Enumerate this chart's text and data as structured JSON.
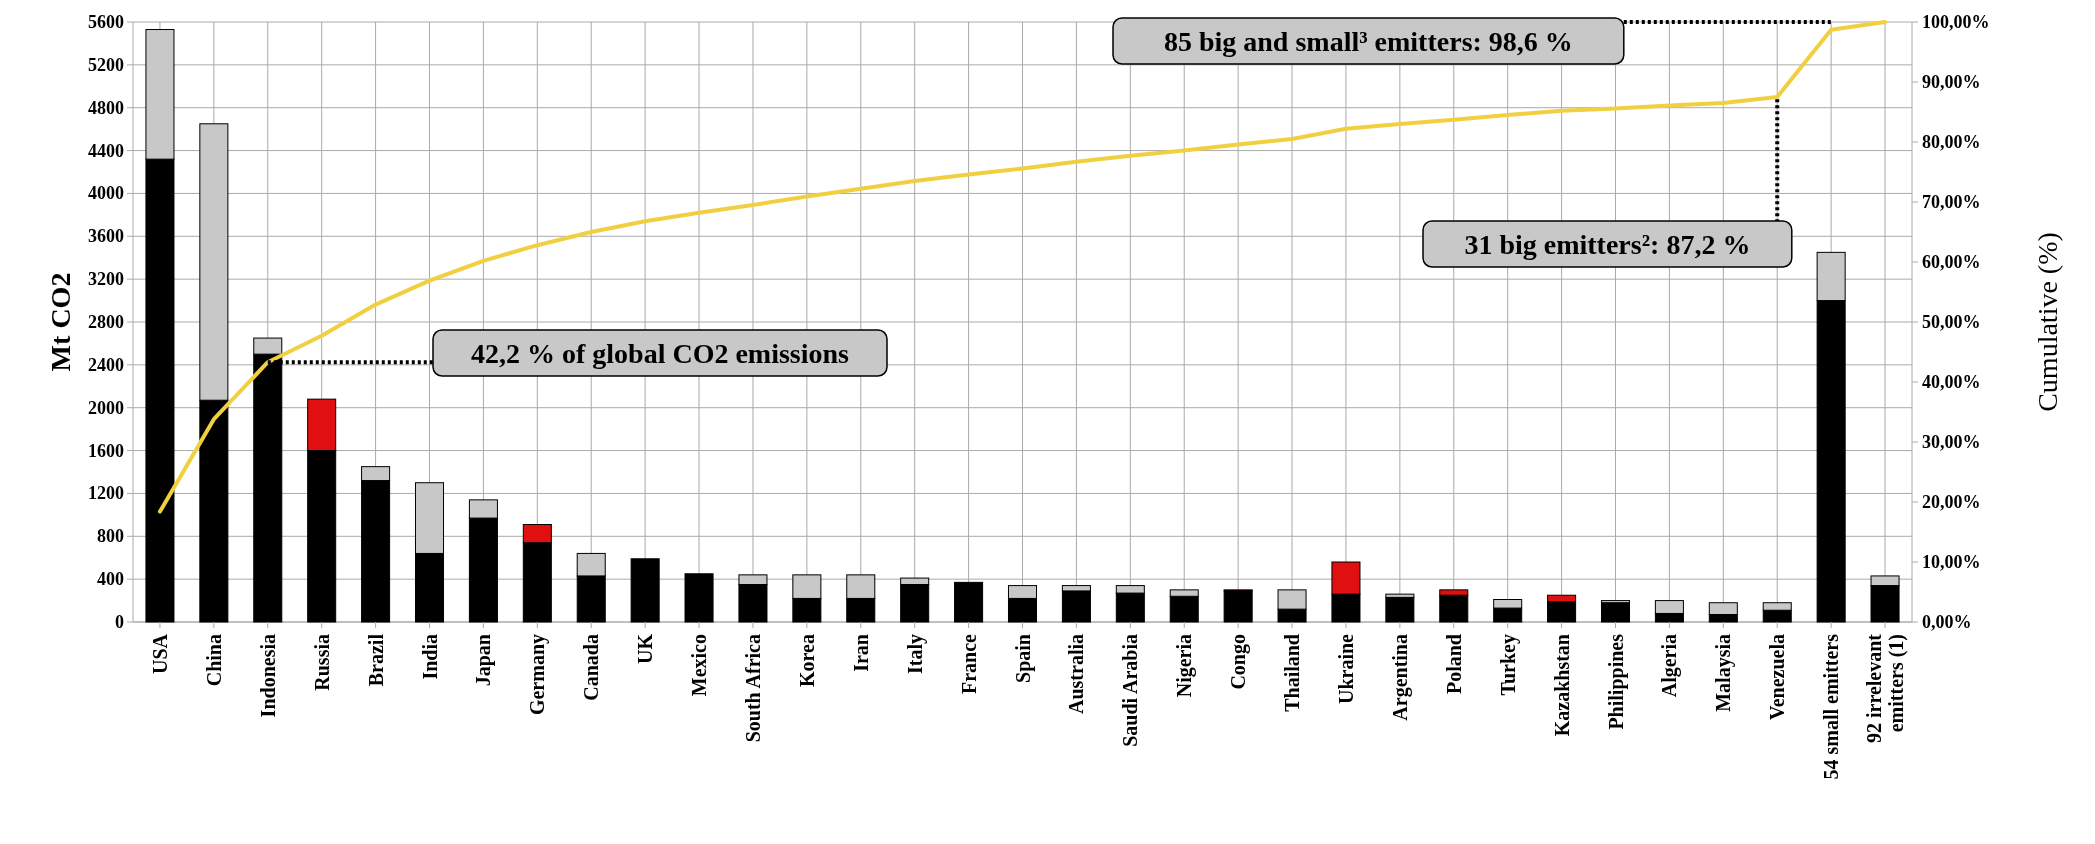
{
  "chart_data": {
    "type": "bar",
    "stacked": true,
    "ylabel": "Mt CO2",
    "y2label": "Cumulative (%)",
    "categories": [
      "USA",
      "China",
      "Indonesia",
      "Russia",
      "Brazil",
      "India",
      "Japan",
      "Germany",
      "Canada",
      "UK",
      "Mexico",
      "South Africa",
      "Korea",
      "Iran",
      "Italy",
      "France",
      "Spain",
      "Australia",
      "Saudi Arabia",
      "Nigeria",
      "Congo",
      "Thailand",
      "Ukraine",
      "Argentina",
      "Poland",
      "Turkey",
      "Kazakhstan",
      "Philippines",
      "Algeria",
      "Malaysia",
      "Venezuela",
      "54 small emitters",
      "92 irrelevant emitters (1)"
    ],
    "series": [
      {
        "color": "#000000",
        "values": [
          4320,
          2070,
          2500,
          1600,
          1320,
          640,
          970,
          740,
          430,
          590,
          450,
          350,
          220,
          220,
          350,
          370,
          220,
          290,
          270,
          240,
          290,
          120,
          260,
          230,
          250,
          130,
          190,
          180,
          80,
          70,
          110,
          3000,
          340
        ]
      },
      {
        "color": "#e01010",
        "values": [
          null,
          null,
          null,
          480,
          null,
          null,
          null,
          170,
          null,
          null,
          null,
          null,
          null,
          null,
          null,
          null,
          null,
          null,
          null,
          null,
          10,
          null,
          300,
          null,
          50,
          null,
          60,
          null,
          null,
          null,
          null,
          null,
          null
        ]
      },
      {
        "color": "#c8c8c8",
        "values": [
          1210,
          2580,
          150,
          null,
          130,
          660,
          170,
          null,
          210,
          null,
          null,
          90,
          220,
          220,
          60,
          null,
          120,
          50,
          70,
          60,
          null,
          180,
          null,
          30,
          null,
          80,
          null,
          20,
          120,
          110,
          70,
          450,
          90
        ]
      },
      {
        "type": "line",
        "axis": "y2",
        "color": "#f0d040",
        "values": [
          18.4,
          33.8,
          43.3,
          47.7,
          52.9,
          56.9,
          60.2,
          62.8,
          65.0,
          66.8,
          68.2,
          69.5,
          70.9,
          72.2,
          73.5,
          74.6,
          75.6,
          76.7,
          77.7,
          78.6,
          79.6,
          80.5,
          82.2,
          83.0,
          83.7,
          84.5,
          85.2,
          85.6,
          86.1,
          86.5,
          87.5,
          98.7,
          100
        ]
      }
    ],
    "ylim": [
      0,
      5600
    ],
    "yticks": [
      0,
      400,
      800,
      1200,
      1600,
      2000,
      2400,
      2800,
      3200,
      3600,
      4000,
      4400,
      4800,
      5200,
      5600
    ],
    "y2lim": [
      0,
      100
    ],
    "y2ticks": [
      {
        "value": 0,
        "label": "0,00%"
      },
      {
        "value": 10,
        "label": "10,00%"
      },
      {
        "value": 20,
        "label": "20,00%"
      },
      {
        "value": 30,
        "label": "30,00%"
      },
      {
        "value": 40,
        "label": "40,00%"
      },
      {
        "value": 50,
        "label": "50,00%"
      },
      {
        "value": 60,
        "label": "60,00%"
      },
      {
        "value": 70,
        "label": "70,00%"
      },
      {
        "value": 80,
        "label": "80,00%"
      },
      {
        "value": 90,
        "label": "90,00%"
      },
      {
        "value": 100,
        "label": "100,00%"
      }
    ],
    "grid": true,
    "annotations": [
      "42,2 % of global CO2 emissions",
      {
        "text": "31 big emitters²: 87,2 %",
        "x": "Venezuela",
        "y": 4880
      },
      "85 big and small³ emitters: 98,6 %"
    ]
  }
}
